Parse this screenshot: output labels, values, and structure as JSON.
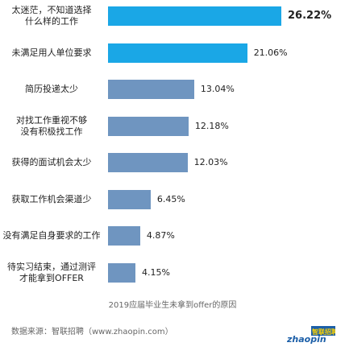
{
  "chart_data": {
    "type": "bar",
    "orientation": "horizontal",
    "categories": [
      "太迷茫，不知道选择\n什么样的工作",
      "未满足用人单位要求",
      "简历投递太少",
      "对找工作重视不够\n没有积极找工作",
      "获得的面试机会太少",
      "获取工作机会渠道少",
      "没有满足自身要求的工作",
      "待实习结束，通过测评\n才能拿到OFFER"
    ],
    "values": [
      26.22,
      21.06,
      13.04,
      12.18,
      12.03,
      6.45,
      4.87,
      4.15
    ],
    "value_labels": [
      "26.22%",
      "21.06%",
      "13.04%",
      "12.18%",
      "12.03%",
      "6.45%",
      "4.87%",
      "4.15%"
    ],
    "colors": {
      "top": "#1aa7e6",
      "second": "#1aa7e6",
      "rest": "#6f95c0"
    },
    "title": "",
    "caption": "2019应届毕业生未拿到offer的原因",
    "xlim": [
      0,
      30
    ],
    "grid": false,
    "legend": "none"
  },
  "footer": {
    "source": "数据来源：智联招聘（www.zhaopin.com）",
    "logo_text": "zhaopin",
    "logo_cn": "智联招聘"
  }
}
